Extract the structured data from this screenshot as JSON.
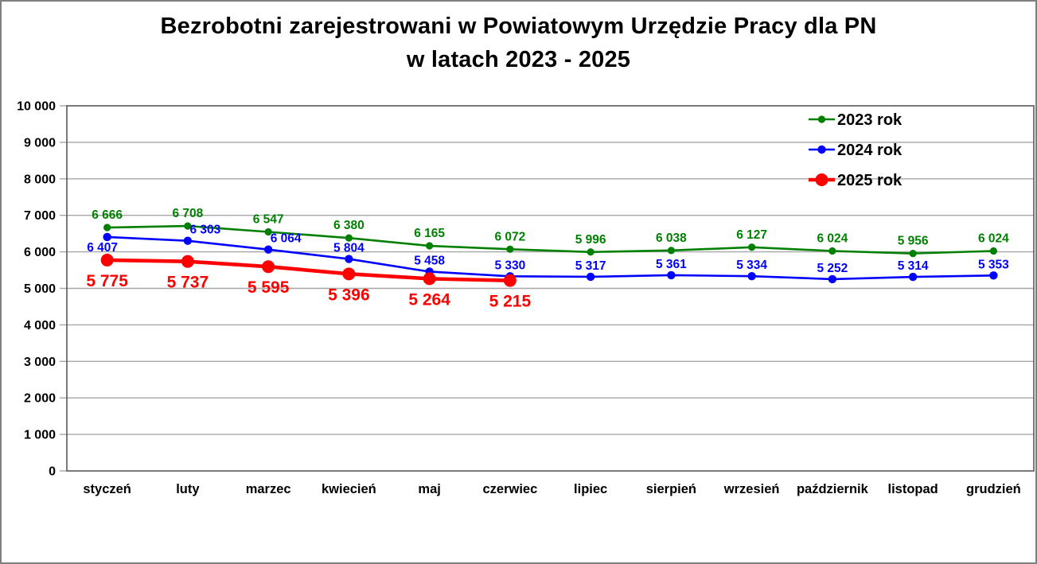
{
  "title": {
    "line1": "Bezrobotni zarejestrowani w Powiatowym Urzędzie Pracy dla PN",
    "line2": "w latach 2023 - 2025"
  },
  "chart_data": {
    "type": "line",
    "categories": [
      "styczeń",
      "luty",
      "marzec",
      "kwiecień",
      "maj",
      "czerwiec",
      "lipiec",
      "sierpień",
      "wrzesień",
      "październik",
      "listopad",
      "grudzień"
    ],
    "series": [
      {
        "name": "2023 rok",
        "color": "#008000",
        "values": [
          6666,
          6708,
          6547,
          6380,
          6165,
          6072,
          5996,
          6038,
          6127,
          6024,
          5956,
          6024
        ]
      },
      {
        "name": "2024 rok",
        "color": "#0000FF",
        "values": [
          6407,
          6303,
          6064,
          5804,
          5458,
          5330,
          5317,
          5361,
          5334,
          5252,
          5314,
          5353
        ]
      },
      {
        "name": "2025 rok",
        "color": "#FF0000",
        "values": [
          5775,
          5737,
          5595,
          5396,
          5264,
          5215
        ]
      }
    ],
    "ylabel": "",
    "xlabel": "",
    "ylim": [
      0,
      10000
    ],
    "ytick_step": 1000,
    "grid": "horizontal",
    "legend_position": "top-right",
    "number_format": "space-thousands",
    "data_labels": true
  },
  "colors": {
    "grid": "#A6A6A6",
    "axis": "#7f7f7f",
    "plot_border": "#595959",
    "text": "#000000",
    "background": "#FFFFFF"
  }
}
